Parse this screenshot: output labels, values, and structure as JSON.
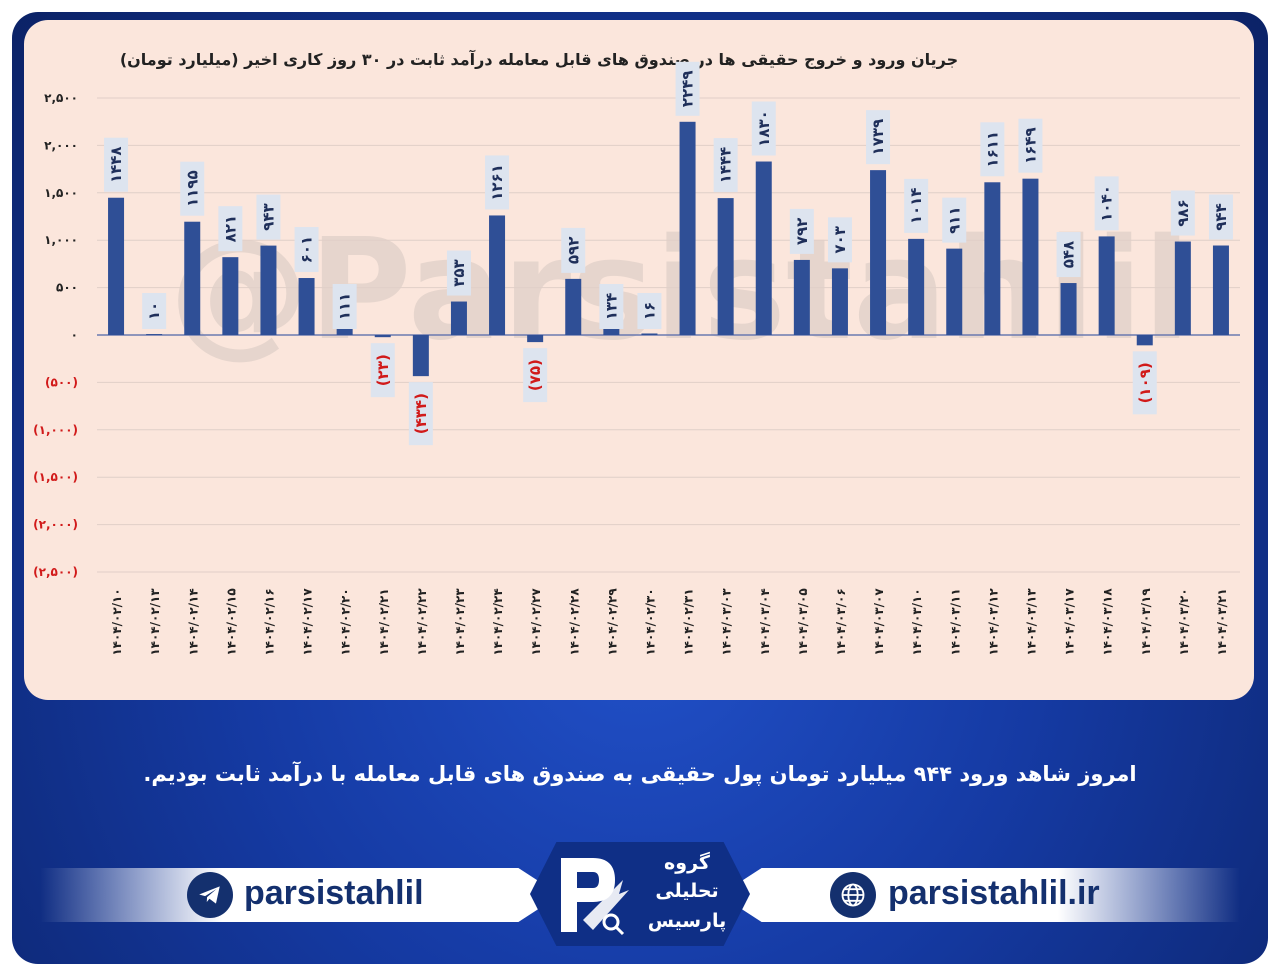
{
  "chart_data": {
    "type": "bar",
    "title": "جریان ورود و خروج حقیقی ها در صندوق های قابل معامله درآمد ثابت در ۳۰ روز کاری اخیر (میلیارد تومان)",
    "categories": [
      "۱۴۰۴/۰۲/۱۰",
      "۱۴۰۴/۰۲/۱۳",
      "۱۴۰۴/۰۲/۱۴",
      "۱۴۰۴/۰۲/۱۵",
      "۱۴۰۴/۰۲/۱۶",
      "۱۴۰۴/۰۲/۱۷",
      "۱۴۰۴/۰۲/۲۰",
      "۱۴۰۴/۰۲/۲۱",
      "۱۴۰۴/۰۲/۲۲",
      "۱۴۰۴/۰۲/۲۳",
      "۱۴۰۴/۰۲/۲۴",
      "۱۴۰۴/۰۲/۲۷",
      "۱۴۰۴/۰۲/۲۸",
      "۱۴۰۴/۰۲/۲۹",
      "۱۴۰۴/۰۲/۳۰",
      "۱۴۰۴/۰۲/۳۱",
      "۱۴۰۴/۰۳/۰۳",
      "۱۴۰۴/۰۳/۰۴",
      "۱۴۰۴/۰۳/۰۵",
      "۱۴۰۴/۰۳/۰۶",
      "۱۴۰۴/۰۳/۰۷",
      "۱۴۰۴/۰۳/۱۰",
      "۱۴۰۴/۰۳/۱۱",
      "۱۴۰۴/۰۳/۱۲",
      "۱۴۰۴/۰۳/۱۳",
      "۱۴۰۴/۰۳/۱۷",
      "۱۴۰۴/۰۳/۱۸",
      "۱۴۰۴/۰۳/۱۹",
      "۱۴۰۴/۰۳/۲۰",
      "۱۴۰۴/۰۳/۲۱"
    ],
    "values": [
      1448,
      10,
      1195,
      821,
      943,
      601,
      111,
      -23,
      -434,
      353,
      1261,
      -75,
      592,
      134,
      16,
      2249,
      1444,
      1830,
      792,
      703,
      1739,
      1014,
      911,
      1611,
      1649,
      548,
      1040,
      -109,
      986,
      944
    ],
    "data_labels": [
      "۱۴۴۸",
      "۱۰",
      "۱۱۹۵",
      "۸۲۱",
      "۹۴۳",
      "۶۰۱",
      "۱۱۱",
      "(۲۳)",
      "(۴۳۴)",
      "۳۵۳",
      "۱۲۶۱",
      "(۷۵)",
      "۵۹۲",
      "۱۳۴",
      "۱۶",
      "۲۲۴۹",
      "۱۴۴۴",
      "۱۸۳۰",
      "۷۹۲",
      "۷۰۳",
      "۱۷۳۹",
      "۱۰۱۴",
      "۹۱۱",
      "۱۶۱۱",
      "۱۶۴۹",
      "۵۴۸",
      "۱۰۴۰",
      "(۱۰۹)",
      "۹۸۶",
      "۹۴۴"
    ],
    "ylim": [
      -2500,
      2500
    ],
    "yticks": [
      2500,
      2000,
      1500,
      1000,
      500,
      0,
      -500,
      -1000,
      -1500,
      -2000,
      -2500
    ],
    "ytick_labels": [
      "۲,۵۰۰",
      "۲,۰۰۰",
      "۱,۵۰۰",
      "۱,۰۰۰",
      "۵۰۰",
      "۰",
      "(۵۰۰)",
      "(۱,۰۰۰)",
      "(۱,۵۰۰)",
      "(۲,۰۰۰)",
      "(۲,۵۰۰)"
    ],
    "grid": true,
    "colors": {
      "bar": "#2f4f96",
      "positive_label": "#1f2f5a",
      "negative_label": "#d11a1a",
      "label_box": "#dde4ef"
    },
    "watermark": "@Parsistahlil"
  },
  "caption": "امروز شاهد ورود ۹۴۴ میلیارد تومان پول حقیقی به صندوق های قابل معامله با درآمد ثابت بودیم.",
  "footer": {
    "left_handle": "parsistahlil",
    "left_icon": "telegram-icon",
    "right_handle": "parsistahlil.ir",
    "right_icon": "globe-icon",
    "logo_lines": [
      "گروه",
      "تحلیلی",
      "پارسیس"
    ],
    "colors": {
      "navy": "#14306e",
      "logo_bg": "#0f2f86"
    }
  }
}
